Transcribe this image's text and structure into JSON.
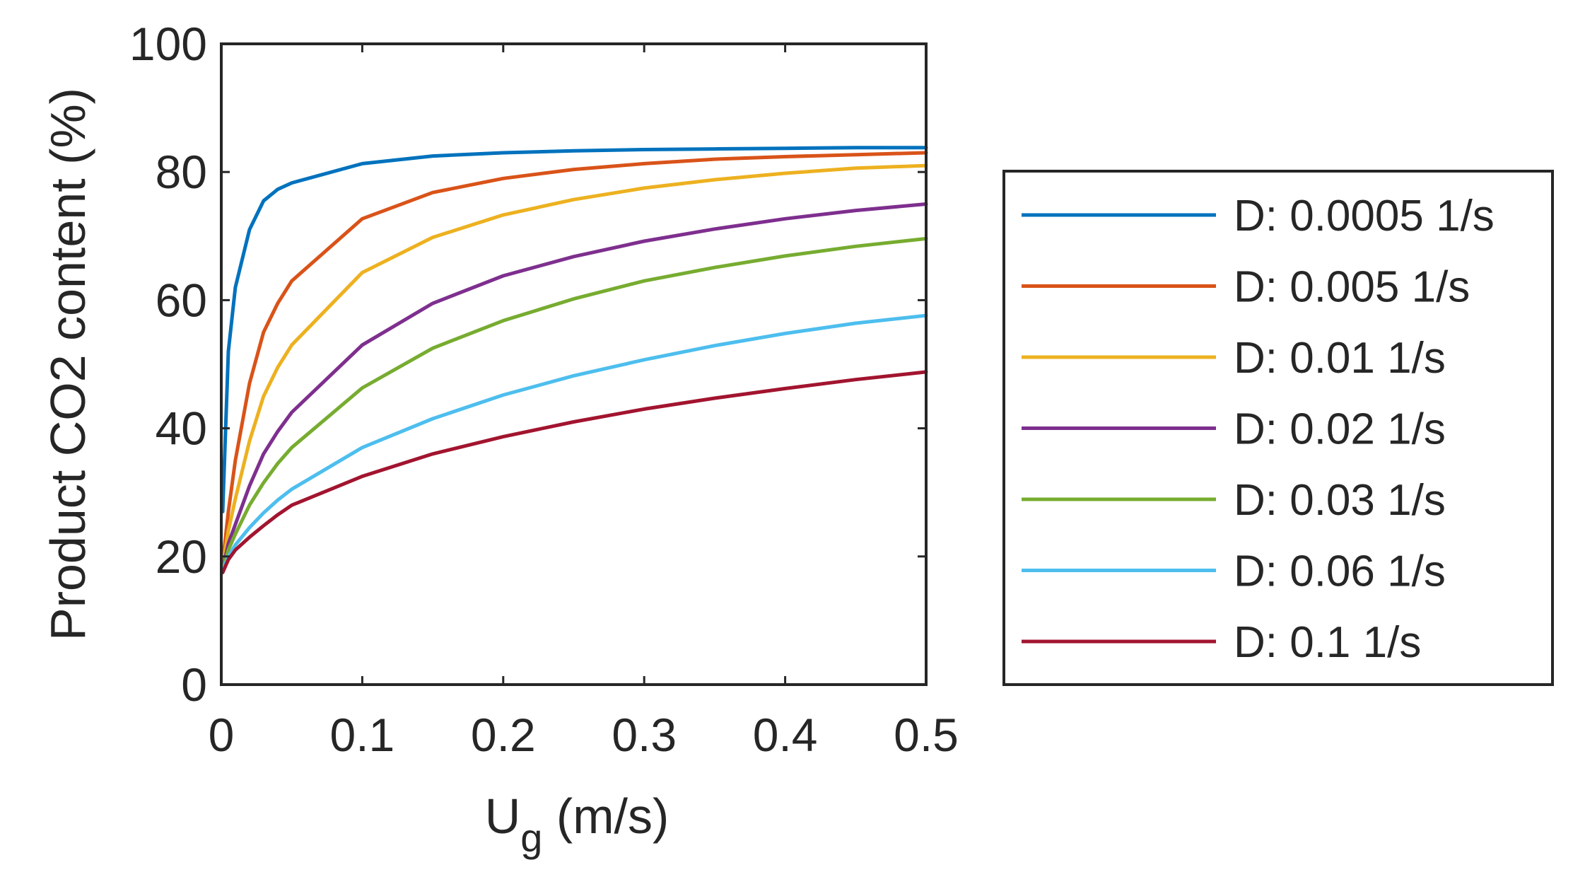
{
  "chart_data": {
    "type": "line",
    "title": "",
    "xlabel": "U",
    "xlabel_subscript": "g",
    "xlabel_units": " (m/s)",
    "ylabel": "Product CO2 content (%)",
    "xlim": [
      0,
      0.5
    ],
    "ylim": [
      0,
      100
    ],
    "xticks": [
      0,
      0.1,
      0.2,
      0.3,
      0.4,
      0.5
    ],
    "xtick_labels": [
      "0",
      "0.1",
      "0.2",
      "0.3",
      "0.4",
      "0.5"
    ],
    "yticks": [
      0,
      20,
      40,
      60,
      80,
      100
    ],
    "ytick_labels": [
      "0",
      "20",
      "40",
      "60",
      "80",
      "100"
    ],
    "grid": false,
    "legend_position": "right",
    "x": [
      0.001,
      0.005,
      0.01,
      0.02,
      0.03,
      0.04,
      0.05,
      0.1,
      0.15,
      0.2,
      0.25,
      0.3,
      0.35,
      0.4,
      0.45,
      0.5
    ],
    "series": [
      {
        "name": "D: 0.0005 1/s",
        "color": "#0072BD",
        "values": [
          27,
          52,
          62,
          71,
          75.5,
          77.3,
          78.3,
          81.3,
          82.5,
          83,
          83.3,
          83.5,
          83.6,
          83.7,
          83.8,
          83.8
        ]
      },
      {
        "name": "D: 0.005 1/s",
        "color": "#D95319",
        "values": [
          19,
          27,
          35,
          47,
          55,
          59.5,
          63,
          72.7,
          76.8,
          79,
          80.4,
          81.3,
          82,
          82.4,
          82.7,
          83
        ]
      },
      {
        "name": "D: 0.01 1/s",
        "color": "#EDB120",
        "values": [
          18.5,
          24,
          29,
          38,
          45,
          49.5,
          53,
          64.3,
          69.8,
          73.3,
          75.7,
          77.5,
          78.8,
          79.8,
          80.6,
          81
        ]
      },
      {
        "name": "D: 0.02 1/s",
        "color": "#7E2F8E",
        "values": [
          18,
          22,
          25,
          31,
          36,
          39.5,
          42.5,
          53,
          59.5,
          63.8,
          66.8,
          69.2,
          71.1,
          72.7,
          74,
          75
        ]
      },
      {
        "name": "D: 0.03 1/s",
        "color": "#77AC30",
        "values": [
          18,
          21,
          23.5,
          28,
          31.5,
          34.5,
          37,
          46.3,
          52.5,
          56.8,
          60.2,
          63,
          65.1,
          66.9,
          68.4,
          69.6
        ]
      },
      {
        "name": "D: 0.06 1/s",
        "color": "#4DBEEE",
        "values": [
          17.8,
          20,
          21.8,
          24.5,
          26.8,
          28.8,
          30.5,
          37,
          41.5,
          45.2,
          48.2,
          50.7,
          52.9,
          54.8,
          56.4,
          57.6
        ]
      },
      {
        "name": "D: 0.1 1/s",
        "color": "#A2142F",
        "values": [
          17.5,
          19.5,
          21,
          23,
          24.8,
          26.5,
          28,
          32.5,
          36,
          38.7,
          41,
          43,
          44.7,
          46.2,
          47.6,
          48.8
        ]
      }
    ]
  }
}
